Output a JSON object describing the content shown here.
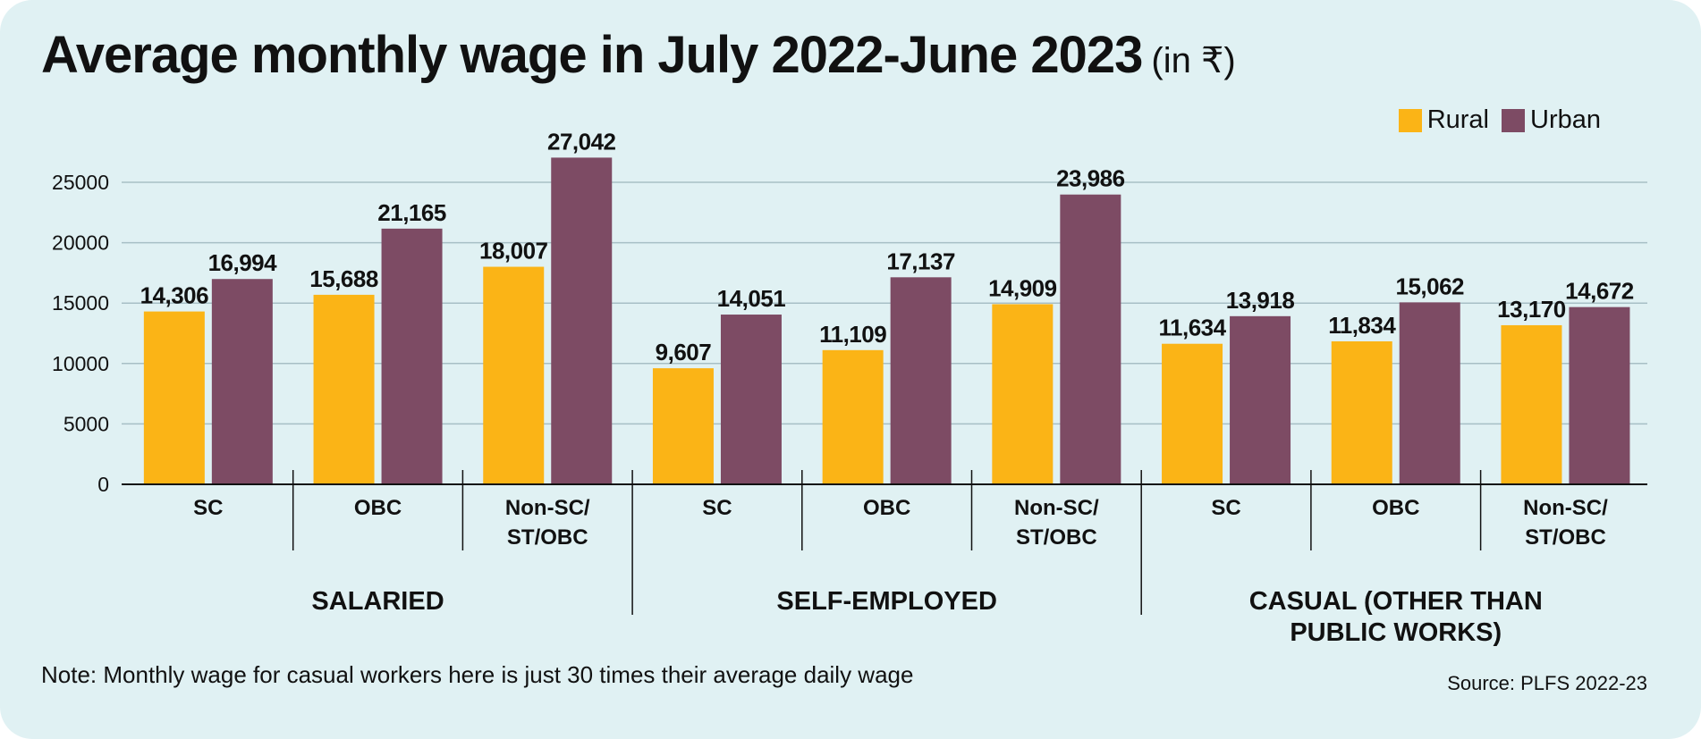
{
  "title": "Average monthly wage in July 2022-June 2023",
  "title_unit": "(in ₹)",
  "colors": {
    "background": "#e0f1f3",
    "rural": "#fbb416",
    "urban": "#7d4b64",
    "grid": "#a7bfc5",
    "text": "#111111"
  },
  "legend": [
    {
      "name": "Rural",
      "color": "#fbb416"
    },
    {
      "name": "Urban",
      "color": "#7d4b64"
    }
  ],
  "note": "Note: Monthly wage for casual workers here is just 30 times their average daily wage",
  "source": "Source: PLFS 2022-23",
  "chart_data": {
    "type": "bar",
    "title": "Average monthly wage in July 2022-June 2023",
    "ylim": [
      0,
      27500
    ],
    "yticks": [
      0,
      5000,
      10000,
      15000,
      20000,
      25000
    ],
    "grid": true,
    "legend_position": "top-right",
    "groups": [
      {
        "label": [
          "SALARIED"
        ],
        "categories": [
          0,
          1,
          2
        ]
      },
      {
        "label": [
          "SELF-EMPLOYED"
        ],
        "categories": [
          3,
          4,
          5
        ]
      },
      {
        "label": [
          "CASUAL (OTHER THAN",
          "PUBLIC WORKS)"
        ],
        "categories": [
          6,
          7,
          8
        ]
      }
    ],
    "categories": [
      [
        "SC"
      ],
      [
        "OBC"
      ],
      [
        "Non-SC/",
        "ST/OBC"
      ],
      [
        "SC"
      ],
      [
        "OBC"
      ],
      [
        "Non-SC/",
        "ST/OBC"
      ],
      [
        "SC"
      ],
      [
        "OBC"
      ],
      [
        "Non-SC/",
        "ST/OBC"
      ]
    ],
    "series": [
      {
        "name": "Rural",
        "values": [
          14306,
          15688,
          18007,
          9607,
          11109,
          14909,
          11634,
          11834,
          13170
        ],
        "labels": [
          "14,306",
          "15,688",
          "18,007",
          "9,607",
          "11,109",
          "14,909",
          "11,634",
          "11,834",
          "13,170"
        ]
      },
      {
        "name": "Urban",
        "values": [
          16994,
          21165,
          27042,
          14051,
          17137,
          23986,
          13918,
          15062,
          14672
        ],
        "labels": [
          "16,994",
          "21,165",
          "27,042",
          "14,051",
          "17,137",
          "23,986",
          "13,918",
          "15,062",
          "14,672"
        ]
      }
    ]
  }
}
